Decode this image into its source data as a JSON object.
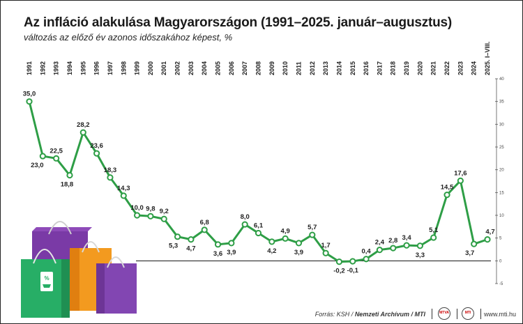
{
  "chart_data": {
    "type": "line",
    "title": "Az infláció alakulása Magyarországon (1991–2025. január–augusztus)",
    "subtitle": "változás az előző év azonos időszakához képest, %",
    "categories": [
      "1991",
      "1992",
      "1993",
      "1994",
      "1995",
      "1996",
      "1997",
      "1998",
      "1999",
      "2000",
      "2001",
      "2002",
      "2003",
      "2004",
      "2005",
      "2006",
      "2007",
      "2008",
      "2009",
      "2010",
      "2011",
      "2012",
      "2013",
      "2014",
      "2015",
      "2016",
      "2017",
      "2018",
      "2019",
      "2020",
      "2021",
      "2022",
      "2023",
      "2024",
      "2025. I–VIII."
    ],
    "series": [
      {
        "values": [
          35.0,
          23.0,
          22.5,
          18.8,
          28.2,
          23.6,
          18.3,
          14.3,
          10.0,
          9.8,
          9.2,
          5.3,
          4.7,
          6.8,
          3.6,
          3.9,
          8.0,
          6.1,
          4.2,
          4.9,
          3.9,
          5.7,
          1.7,
          -0.2,
          -0.1,
          0.4,
          2.4,
          2.8,
          3.4,
          3.3,
          5.1,
          14.5,
          17.6,
          3.7,
          4.7
        ],
        "labels": [
          "35,0",
          "23,0",
          "22,5",
          "18,8",
          "28,2",
          "23,6",
          "18,3",
          "14,3",
          "10,0",
          "9,8",
          "9,2",
          "5,3",
          "4,7",
          "6,8",
          "3,6",
          "3,9",
          "8,0",
          "6,1",
          "4,2",
          "4,9",
          "3,9",
          "5,7",
          "1,7",
          "-0,2",
          "-0,1",
          "0,4",
          "2,4",
          "2,8",
          "3,4",
          "3,3",
          "5,1",
          "14,5",
          "17,6",
          "3,7",
          "4,7"
        ]
      }
    ],
    "ylim": [
      -5,
      40
    ],
    "y_ticks": [
      -5,
      0,
      5,
      10,
      15,
      20,
      25,
      30,
      35,
      40
    ],
    "y_axis_position": "right",
    "x_labels_position": "top",
    "grid": false,
    "line_color": "#2e9e46",
    "marker_fill": "#ffffff"
  },
  "footer": {
    "source_prefix": "Forrás: KSH / ",
    "source_bold": "Nemzeti Archívum / MTI",
    "logo1": "MTVA",
    "logo2": "MTI",
    "site": "www.mti.hu"
  }
}
